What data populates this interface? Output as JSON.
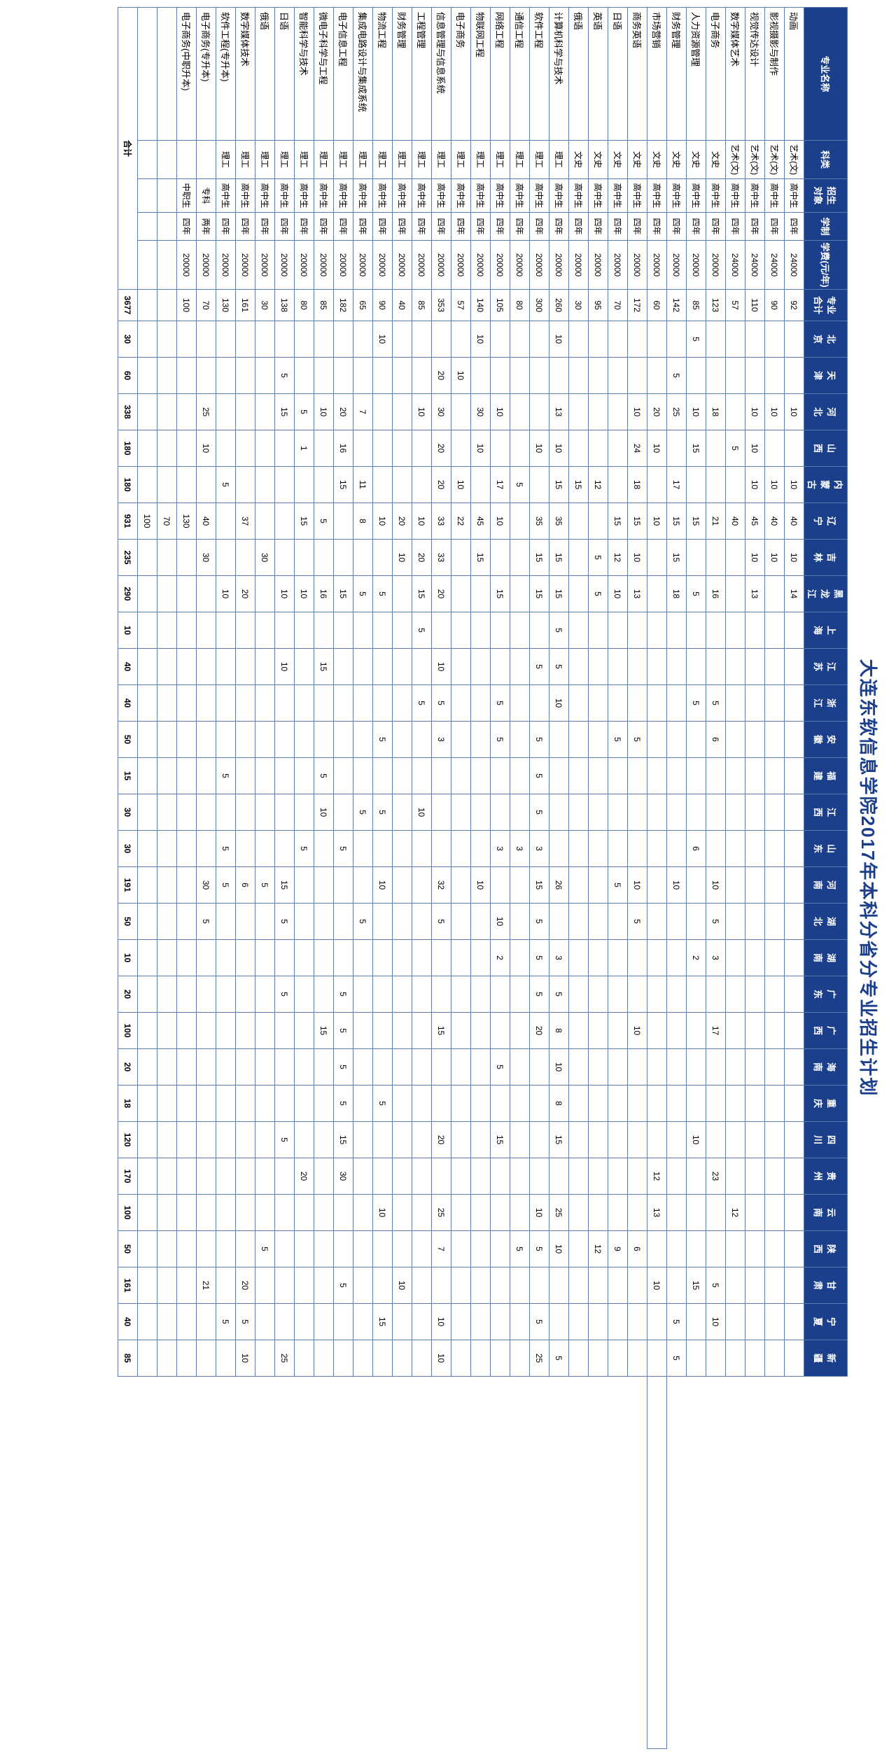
{
  "title": "大连东软信息学院2017年本科分省分专业招生计划",
  "header_bg": "#1b3f8a",
  "header_fg": "#ffffff",
  "border_color": "#5b7bb3",
  "columns_fixed": [
    {
      "key": "major",
      "label": "专业名称"
    },
    {
      "key": "cat",
      "label": "科类"
    },
    {
      "key": "target",
      "label": "招生\n对象"
    },
    {
      "key": "years",
      "label": "学制"
    },
    {
      "key": "fee",
      "label": "学费(元/年)"
    },
    {
      "key": "sum",
      "label": "专业\n合计"
    }
  ],
  "provinces": [
    "北京",
    "天津",
    "河北",
    "山西",
    "内蒙古",
    "辽宁",
    "吉林",
    "黑龙江",
    "上海",
    "江苏",
    "浙江",
    "安徽",
    "福建",
    "江西",
    "山东",
    "河南",
    "湖北",
    "湖南",
    "广东",
    "广西",
    "海南",
    "重庆",
    "四川",
    "贵州",
    "云南",
    "陕西",
    "甘肃",
    "宁夏",
    "新疆"
  ],
  "totals_label": "合计",
  "totals_sum": "3677",
  "totals_by_prov": [
    "30",
    "60",
    "338",
    "180",
    "180",
    "931",
    "235",
    "290",
    "10",
    "40",
    "40",
    "50",
    "15",
    "30",
    "30",
    "191",
    "50",
    "10",
    "20",
    "100",
    "20",
    "18",
    "120",
    "170",
    "100",
    "50",
    "161",
    "40",
    "85"
  ],
  "rows": [
    {
      "major": "动画",
      "cat": "艺术(文)",
      "target": "高中生",
      "years": "四年",
      "fee": "24000",
      "sum": "92",
      "p": [
        "",
        "",
        "10",
        "",
        "10",
        "40",
        "10",
        "14",
        "",
        "",
        "",
        "",
        "",
        "",
        "",
        "",
        "",
        "",
        "",
        "",
        "",
        "",
        "",
        "",
        "",
        "",
        "",
        "",
        ""
      ]
    },
    {
      "major": "影视摄影与制作",
      "cat": "艺术(文)",
      "target": "高中生",
      "years": "四年",
      "fee": "24000",
      "sum": "90",
      "p": [
        "",
        "",
        "10",
        "",
        "10",
        "40",
        "10",
        "",
        "",
        "",
        "",
        "",
        "",
        "",
        "",
        "",
        "",
        "",
        "",
        "",
        "",
        "",
        "",
        "",
        "",
        "",
        "",
        "",
        ""
      ]
    },
    {
      "major": "视觉传达设计",
      "cat": "艺术(文)",
      "target": "高中生",
      "years": "四年",
      "fee": "24000",
      "sum": "110",
      "p": [
        "",
        "",
        "10",
        "10",
        "10",
        "45",
        "10",
        "13",
        "",
        "",
        "",
        "",
        "",
        "",
        "",
        "",
        "",
        "",
        "",
        "",
        "",
        "",
        "",
        "",
        "",
        "",
        "",
        "",
        ""
      ]
    },
    {
      "major": "数字媒体艺术",
      "cat": "艺术(文)",
      "target": "高中生",
      "years": "四年",
      "fee": "24000",
      "sum": "57",
      "p": [
        "",
        "",
        "",
        "5",
        "",
        "40",
        "",
        "",
        "",
        "",
        "",
        "",
        "",
        "",
        "",
        "",
        "",
        "",
        "",
        "",
        "",
        "",
        "",
        "",
        "12",
        "",
        "",
        "",
        ""
      ]
    },
    {
      "major": "电子商务",
      "cat": "文史",
      "target": "高中生",
      "years": "四年",
      "fee": "20000",
      "sum": "123",
      "p": [
        "",
        "",
        "18",
        "",
        "",
        "21",
        "",
        "16",
        "",
        "",
        "5",
        "6",
        "",
        "",
        "",
        "10",
        "5",
        "3",
        "",
        "17",
        "",
        "",
        "",
        "23",
        "",
        "",
        "5",
        "10",
        ""
      ]
    },
    {
      "major": "人力资源管理",
      "cat": "文史",
      "target": "高中生",
      "years": "四年",
      "fee": "20000",
      "sum": "85",
      "p": [
        "5",
        "",
        "10",
        "15",
        "",
        "15",
        "",
        "5",
        "",
        "",
        "5",
        "",
        "",
        "",
        "6",
        "",
        "",
        "2",
        "",
        "",
        "",
        "",
        "10",
        "",
        "",
        "",
        "15",
        "",
        ""
      ]
    },
    {
      "major": "财务管理",
      "cat": "文史",
      "target": "高中生",
      "years": "四年",
      "fee": "20000",
      "sum": "142",
      "p": [
        "",
        "5",
        "25",
        "",
        "17",
        "15",
        "15",
        "18",
        "",
        "",
        "",
        "",
        "",
        "",
        "",
        "10",
        "",
        "",
        "",
        "",
        "",
        "",
        "",
        "",
        "",
        "",
        "",
        "5",
        "5"
      ]
    },
    {
      "major": "市场营销",
      "cat": "文史",
      "target": "高中生",
      "years": "四年",
      "fee": "20000",
      "sum": "60",
      "p": [
        "",
        "",
        "20",
        "10",
        "",
        "10",
        "",
        "",
        "",
        "",
        "",
        "",
        "",
        "",
        "",
        "",
        "",
        "",
        "",
        "",
        "",
        "",
        "",
        "12",
        "13",
        "",
        "10",
        "",
        "",
        ""
      ]
    },
    {
      "major": "商务英语",
      "cat": "文史",
      "target": "高中生",
      "years": "四年",
      "fee": "20000",
      "sum": "172",
      "p": [
        "",
        "",
        "10",
        "24",
        "18",
        "15",
        "10",
        "13",
        "",
        "",
        "",
        "5",
        "",
        "",
        "",
        "10",
        "5",
        "",
        "",
        "10",
        "",
        "",
        "",
        "",
        "",
        "6",
        "",
        "",
        ""
      ]
    },
    {
      "major": "日语",
      "cat": "文史",
      "target": "高中生",
      "years": "四年",
      "fee": "20000",
      "sum": "70",
      "p": [
        "",
        "",
        "",
        "",
        "",
        "15",
        "12",
        "10",
        "",
        "",
        "",
        "5",
        "",
        "",
        "",
        "5",
        "",
        "",
        "",
        "",
        "",
        "",
        "",
        "",
        "",
        "9",
        "",
        "",
        ""
      ]
    },
    {
      "major": "英语",
      "cat": "文史",
      "target": "高中生",
      "years": "四年",
      "fee": "20000",
      "sum": "95",
      "p": [
        "",
        "",
        "",
        "",
        "12",
        "",
        "5",
        "5",
        "",
        "",
        "",
        "",
        "",
        "",
        "",
        "",
        "",
        "",
        "",
        "",
        "",
        "",
        "",
        "",
        "",
        "12",
        "",
        "",
        ""
      ]
    },
    {
      "major": "俄语",
      "cat": "文史",
      "target": "高中生",
      "years": "四年",
      "fee": "20000",
      "sum": "30",
      "p": [
        "",
        "",
        "",
        "",
        "15",
        "",
        "",
        "",
        "",
        "",
        "",
        "",
        "",
        "",
        "",
        "",
        "",
        "",
        "",
        "",
        "",
        "",
        "",
        "",
        "",
        "",
        "",
        "",
        ""
      ]
    },
    {
      "major": "计算机科学与技术",
      "cat": "理工",
      "target": "高中生",
      "years": "四年",
      "fee": "20000",
      "sum": "260",
      "p": [
        "10",
        "",
        "13",
        "10",
        "15",
        "35",
        "15",
        "15",
        "5",
        "5",
        "10",
        "",
        "",
        "",
        "",
        "26",
        "",
        "3",
        "5",
        "8",
        "10",
        "8",
        "15",
        "",
        "25",
        "10",
        "",
        "",
        "5"
      ]
    },
    {
      "major": "软件工程",
      "cat": "理工",
      "target": "高中生",
      "years": "四年",
      "fee": "20000",
      "sum": "300",
      "p": [
        "",
        "",
        "",
        "10",
        "",
        "35",
        "15",
        "15",
        "",
        "5",
        "",
        "5",
        "5",
        "5",
        "3",
        "15",
        "5",
        "5",
        "5",
        "20",
        "",
        "",
        "",
        "",
        "10",
        "5",
        "",
        "5",
        "25"
      ]
    },
    {
      "major": "通信工程",
      "cat": "理工",
      "target": "高中生",
      "years": "四年",
      "fee": "20000",
      "sum": "80",
      "p": [
        "",
        "",
        "",
        "",
        "5",
        "",
        "",
        "",
        "",
        "",
        "",
        "",
        "",
        "",
        "3",
        "",
        "",
        "",
        "",
        "",
        "",
        "",
        "",
        "",
        "",
        "5",
        "",
        "",
        ""
      ]
    },
    {
      "major": "网络工程",
      "cat": "理工",
      "target": "高中生",
      "years": "四年",
      "fee": "20000",
      "sum": "105",
      "p": [
        "",
        "",
        "10",
        "",
        "17",
        "10",
        "",
        "15",
        "",
        "",
        "5",
        "5",
        "",
        "",
        "3",
        "",
        "10",
        "2",
        "",
        "",
        "5",
        "",
        "15",
        "",
        "",
        "",
        "",
        "",
        ""
      ]
    },
    {
      "major": "物联网工程",
      "cat": "理工",
      "target": "高中生",
      "years": "四年",
      "fee": "20000",
      "sum": "140",
      "p": [
        "10",
        "",
        "30",
        "10",
        "",
        "45",
        "15",
        "",
        "",
        "",
        "",
        "",
        "",
        "",
        "",
        "10",
        "",
        "",
        "",
        "",
        "",
        "",
        "",
        "",
        "",
        "",
        "",
        "",
        ""
      ]
    },
    {
      "major": "电子商务",
      "cat": "理工",
      "target": "高中生",
      "years": "四年",
      "fee": "20000",
      "sum": "57",
      "p": [
        "",
        "10",
        "",
        "",
        "10",
        "22",
        "",
        "",
        "",
        "",
        "",
        "",
        "",
        "",
        "",
        "",
        "",
        "",
        "",
        "",
        "",
        "",
        "",
        "",
        "",
        "",
        "",
        "",
        ""
      ]
    },
    {
      "major": "信息管理与信息系统",
      "cat": "理工",
      "target": "高中生",
      "years": "四年",
      "fee": "20000",
      "sum": "353",
      "p": [
        "",
        "20",
        "30",
        "20",
        "20",
        "33",
        "33",
        "20",
        "",
        "10",
        "5",
        "3",
        "",
        "",
        "",
        "32",
        "5",
        "",
        "",
        "15",
        "",
        "",
        "20",
        "",
        "25",
        "7",
        "",
        "10",
        "10"
      ]
    },
    {
      "major": "工程管理",
      "cat": "理工",
      "target": "高中生",
      "years": "四年",
      "fee": "20000",
      "sum": "85",
      "p": [
        "",
        "",
        "10",
        "",
        "",
        "10",
        "20",
        "15",
        "5",
        "",
        "5",
        "",
        "",
        "10",
        "",
        "",
        "",
        "",
        "",
        "",
        "",
        "",
        "",
        "",
        "",
        "",
        "",
        "",
        ""
      ]
    },
    {
      "major": "财务管理",
      "cat": "理工",
      "target": "高中生",
      "years": "四年",
      "fee": "20000",
      "sum": "40",
      "p": [
        "",
        "",
        "",
        "",
        "",
        "20",
        "10",
        "",
        "",
        "",
        "",
        "",
        "",
        "",
        "",
        "",
        "",
        "",
        "",
        "",
        "",
        "",
        "",
        "",
        "",
        "",
        "10",
        "",
        ""
      ]
    },
    {
      "major": "物流工程",
      "cat": "理工",
      "target": "高中生",
      "years": "四年",
      "fee": "20000",
      "sum": "90",
      "p": [
        "10",
        "",
        "",
        "",
        "",
        "10",
        "",
        "5",
        "",
        "",
        "",
        "5",
        "",
        "5",
        "",
        "10",
        "",
        "",
        "",
        "",
        "",
        "5",
        "",
        "",
        "10",
        "",
        "",
        "15",
        ""
      ]
    },
    {
      "major": "集成电路设计与集成系统",
      "cat": "理工",
      "target": "高中生",
      "years": "四年",
      "fee": "20000",
      "sum": "65",
      "p": [
        "",
        "",
        "7",
        "",
        "11",
        "8",
        "",
        "5",
        "",
        "",
        "",
        "",
        "",
        "5",
        "",
        "",
        "5",
        "",
        "",
        "",
        "",
        "",
        "",
        "",
        "",
        "",
        "",
        "",
        ""
      ]
    },
    {
      "major": "电子信息工程",
      "cat": "理工",
      "target": "高中生",
      "years": "四年",
      "fee": "20000",
      "sum": "182",
      "p": [
        "",
        "",
        "20",
        "16",
        "15",
        "",
        "",
        "15",
        "",
        "",
        "",
        "",
        "",
        "",
        "5",
        "",
        "",
        "",
        "5",
        "5",
        "5",
        "5",
        "15",
        "30",
        "",
        "",
        "5",
        "",
        ""
      ]
    },
    {
      "major": "微电子科学与工程",
      "cat": "理工",
      "target": "高中生",
      "years": "四年",
      "fee": "20000",
      "sum": "85",
      "p": [
        "",
        "",
        "10",
        "",
        "",
        "5",
        "",
        "16",
        "",
        "15",
        "",
        "",
        "5",
        "10",
        "",
        "",
        "",
        "",
        "",
        "15",
        "",
        "",
        "",
        "",
        "",
        "",
        "",
        "",
        ""
      ]
    },
    {
      "major": "智能科学与技术",
      "cat": "理工",
      "target": "高中生",
      "years": "四年",
      "fee": "20000",
      "sum": "80",
      "p": [
        "",
        "",
        "5",
        "1",
        "",
        "15",
        "",
        "10",
        "",
        "",
        "",
        "",
        "",
        "",
        "5",
        "",
        "",
        "",
        "",
        "",
        "",
        "",
        "",
        "20",
        "",
        "",
        "",
        "",
        ""
      ]
    },
    {
      "major": "日语",
      "cat": "理工",
      "target": "高中生",
      "years": "四年",
      "fee": "20000",
      "sum": "138",
      "p": [
        "",
        "5",
        "15",
        "",
        "",
        "",
        "",
        "10",
        "",
        "10",
        "",
        "",
        "",
        "",
        "",
        "15",
        "5",
        "",
        "5",
        "",
        "",
        "",
        "5",
        "",
        "",
        "",
        "",
        "",
        "25"
      ]
    },
    {
      "major": "俄语",
      "cat": "理工",
      "target": "高中生",
      "years": "四年",
      "fee": "20000",
      "sum": "30",
      "p": [
        "",
        "",
        "",
        "",
        "",
        "",
        "30",
        "",
        "",
        "",
        "",
        "",
        "",
        "",
        "",
        "5",
        "",
        "",
        "",
        "",
        "",
        "",
        "",
        "",
        "",
        "5",
        "",
        "",
        ""
      ]
    },
    {
      "major": "数字媒体技术",
      "cat": "理工",
      "target": "高中生",
      "years": "四年",
      "fee": "20000",
      "sum": "161",
      "p": [
        "",
        "",
        "",
        "",
        "",
        "37",
        "",
        "20",
        "",
        "",
        "",
        "",
        "",
        "",
        "",
        "6",
        "",
        "",
        "",
        "",
        "",
        "",
        "",
        "",
        "",
        "",
        "20",
        "5",
        "10"
      ]
    },
    {
      "major": "软件工程(专升本)",
      "cat": "理工",
      "target": "高中生",
      "years": "四年",
      "fee": "20000",
      "sum": "130",
      "p": [
        "",
        "",
        "",
        "",
        "5",
        "",
        "",
        "10",
        "",
        "",
        "",
        "",
        "5",
        "",
        "5",
        "5",
        "",
        "",
        "",
        "",
        "",
        "",
        "",
        "",
        "",
        "",
        "",
        "5",
        ""
      ]
    },
    {
      "major": "电子商务(专升本)",
      "cat": "",
      "target": "专科",
      "years": "两年",
      "fee": "20000",
      "sum": "70",
      "p": [
        "",
        "",
        "25",
        "10",
        "",
        "40",
        "30",
        "",
        "",
        "",
        "",
        "",
        "",
        "",
        "",
        "30",
        "5",
        "",
        "",
        "",
        "",
        "",
        "",
        "",
        "",
        "",
        "21",
        "",
        ""
      ]
    },
    {
      "major": "电子商务(中职升本)",
      "cat": "",
      "target": "中职生",
      "years": "四年",
      "fee": "20000",
      "sum": "100",
      "p": [
        "",
        "",
        "",
        "",
        "",
        "130",
        "",
        "",
        "",
        "",
        "",
        "",
        "",
        "",
        "",
        "",
        "",
        "",
        "",
        "",
        "",
        "",
        "",
        "",
        "",
        "",
        "",
        "",
        ""
      ]
    },
    {
      "major": "",
      "cat": "",
      "target": "",
      "years": "",
      "fee": "",
      "sum": "",
      "p": [
        "",
        "",
        "",
        "",
        "",
        "70",
        "",
        "",
        "",
        "",
        "",
        "",
        "",
        "",
        "",
        "",
        "",
        "",
        "",
        "",
        "",
        "",
        "",
        "",
        "",
        "",
        "",
        "",
        ""
      ]
    },
    {
      "major": "",
      "cat": "",
      "target": "",
      "years": "",
      "fee": "",
      "sum": "",
      "p": [
        "",
        "",
        "",
        "",
        "",
        "100",
        "",
        "",
        "",
        "",
        "",
        "",
        "",
        "",
        "",
        "",
        "",
        "",
        "",
        "",
        "",
        "",
        "",
        "",
        "",
        "",
        "",
        "",
        ""
      ]
    }
  ]
}
